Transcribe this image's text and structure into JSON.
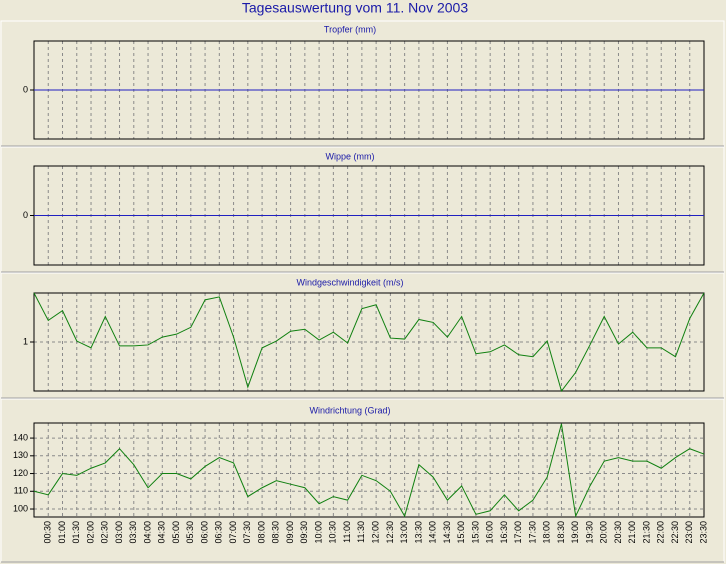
{
  "title": "Tagesauswertung vom 11. Nov 2003",
  "chart_data": [
    {
      "type": "line",
      "title": "Tropfer (mm)",
      "ylim": [
        -1,
        1
      ],
      "yticks": [
        0
      ],
      "grid": true,
      "series": [
        {
          "color": "#2020c0",
          "values": [
            0,
            0,
            0,
            0,
            0,
            0,
            0,
            0,
            0,
            0,
            0,
            0,
            0,
            0,
            0,
            0,
            0,
            0,
            0,
            0,
            0,
            0,
            0,
            0,
            0,
            0,
            0,
            0,
            0,
            0,
            0,
            0,
            0,
            0,
            0,
            0,
            0,
            0,
            0,
            0,
            0,
            0,
            0,
            0,
            0,
            0,
            0,
            0
          ]
        }
      ]
    },
    {
      "type": "line",
      "title": "Wippe (mm)",
      "ylim": [
        -1,
        1
      ],
      "yticks": [
        0
      ],
      "grid": true,
      "series": [
        {
          "color": "#2020c0",
          "values": [
            0,
            0,
            0,
            0,
            0,
            0,
            0,
            0,
            0,
            0,
            0,
            0,
            0,
            0,
            0,
            0,
            0,
            0,
            0,
            0,
            0,
            0,
            0,
            0,
            0,
            0,
            0,
            0,
            0,
            0,
            0,
            0,
            0,
            0,
            0,
            0,
            0,
            0,
            0,
            0,
            0,
            0,
            0,
            0,
            0,
            0,
            0,
            0
          ]
        }
      ]
    },
    {
      "type": "line",
      "title": "Windgeschwindigkeit (m/s)",
      "ylim": [
        0.5,
        1.5
      ],
      "yticks": [
        1
      ],
      "grid": true,
      "series": [
        {
          "color": "#108010",
          "values": [
            1.5,
            1.22,
            1.32,
            1.01,
            0.94,
            1.26,
            0.96,
            0.96,
            0.97,
            1.05,
            1.08,
            1.15,
            1.43,
            1.46,
            1.05,
            0.54,
            0.94,
            1.01,
            1.11,
            1.13,
            1.02,
            1.1,
            0.99,
            1.34,
            1.38,
            1.04,
            1.03,
            1.23,
            1.2,
            1.05,
            1.26,
            0.88,
            0.9,
            0.97,
            0.87,
            0.85,
            1.01,
            0.5,
            0.69,
            0.97,
            1.26,
            0.98,
            1.1,
            0.94,
            0.94,
            0.85,
            1.24,
            1.5
          ]
        }
      ]
    },
    {
      "type": "line",
      "title": "Windrichtung (Grad)",
      "ylim": [
        95.5,
        148.5
      ],
      "yticks": [
        100,
        110,
        120,
        130,
        140
      ],
      "grid": true,
      "categories": [
        null,
        "00:30",
        "01:00",
        "01:30",
        "02:00",
        "02:30",
        "03:00",
        "03:30",
        "04:00",
        "04:30",
        "05:00",
        "05:30",
        "06:00",
        "06:30",
        "07:00",
        "07:30",
        "08:00",
        "08:30",
        "09:00",
        "09:30",
        "10:00",
        "10:30",
        "11:00",
        "11:30",
        "12:00",
        "12:30",
        "13:00",
        "13:30",
        "14:00",
        "14:30",
        "15:00",
        "15:30",
        "16:00",
        "16:30",
        "17:00",
        "17:30",
        "18:00",
        "18:30",
        "19:00",
        "19:30",
        "20:00",
        "20:30",
        "21:00",
        "21:30",
        "22:00",
        "22:30",
        "23:00",
        "23:30"
      ],
      "series": [
        {
          "color": "#108010",
          "values": [
            110,
            108,
            120,
            119,
            123,
            126,
            134,
            125,
            112,
            120,
            120,
            117,
            124,
            129,
            126,
            107,
            112,
            116,
            114,
            112,
            103,
            107,
            105,
            119,
            116,
            110,
            96,
            125,
            118,
            105,
            113,
            97,
            99,
            108,
            99,
            105,
            118,
            148,
            96,
            113,
            127,
            129,
            127,
            127,
            123,
            129,
            134,
            131
          ]
        }
      ]
    }
  ]
}
